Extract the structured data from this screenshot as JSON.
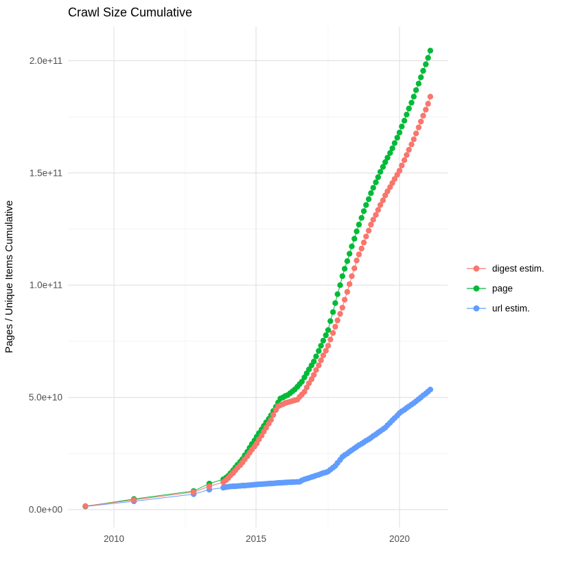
{
  "title": "Crawl Size Cumulative",
  "y_axis": {
    "label": "Pages / Unique Items Cumulative",
    "ticks": [
      "0.0e+00",
      "5.0e+10",
      "1.0e+11",
      "1.5e+11",
      "2.0e+11"
    ],
    "tick_values_e9": [
      0,
      50,
      100,
      150,
      200
    ],
    "minor_tick_values_e9": [
      25,
      75,
      125,
      175
    ]
  },
  "x_axis": {
    "ticks": [
      "2010",
      "2015",
      "2020"
    ],
    "tick_values": [
      2010,
      2015,
      2020
    ],
    "minor_tick_values": [
      2012.5,
      2017.5
    ]
  },
  "legend": {
    "items": [
      {
        "label": "digest estim.",
        "color": "#F8766D"
      },
      {
        "label": "page",
        "color": "#00BA38"
      },
      {
        "label": "url estim.",
        "color": "#619CFF"
      }
    ]
  },
  "colors": {
    "digest": "#F8766D",
    "page": "#00BA38",
    "url": "#619CFF",
    "grid_major": "#e2e2e2",
    "grid_minor": "#efefef",
    "tick_text": "#4d4d4d",
    "background": "#ffffff"
  },
  "chart_data": {
    "type": "scatter",
    "title": "Crawl Size Cumulative",
    "xlabel": "",
    "ylabel": "Pages / Unique Items Cumulative",
    "x_unit": "year (decimal)",
    "y_unit": "count, in billions (1e9)",
    "xlim": [
      2008.4,
      2021.7
    ],
    "ylim_e9": [
      -8,
      215
    ],
    "grid": true,
    "legend_position": "right",
    "draw_order": [
      "url estim.",
      "page",
      "digest estim."
    ],
    "series": [
      {
        "name": "digest estim.",
        "color": "#F8766D",
        "points": [
          [
            2009.0,
            1.6
          ],
          [
            2010.7,
            4.3
          ],
          [
            2012.79,
            7.8
          ],
          [
            2013.34,
            10.4
          ],
          [
            2013.83,
            12.2
          ],
          [
            2013.92,
            13.1
          ],
          [
            2014.0,
            14.0
          ],
          [
            2014.08,
            15.2
          ],
          [
            2014.17,
            16.3
          ],
          [
            2014.25,
            17.5
          ],
          [
            2014.33,
            18.7
          ],
          [
            2014.42,
            19.8
          ],
          [
            2014.5,
            21.0
          ],
          [
            2014.58,
            22.4
          ],
          [
            2014.67,
            23.8
          ],
          [
            2014.75,
            25.3
          ],
          [
            2014.83,
            26.7
          ],
          [
            2014.92,
            28.1
          ],
          [
            2015.0,
            29.5
          ],
          [
            2015.08,
            31.3
          ],
          [
            2015.17,
            33.0
          ],
          [
            2015.25,
            34.8
          ],
          [
            2015.33,
            36.5
          ],
          [
            2015.42,
            38.3
          ],
          [
            2015.5,
            40.0
          ],
          [
            2015.58,
            42.2
          ],
          [
            2015.67,
            44.4
          ],
          [
            2015.75,
            46.0
          ],
          [
            2015.83,
            46.5
          ],
          [
            2015.92,
            47.0
          ],
          [
            2016.0,
            47.5
          ],
          [
            2016.08,
            47.8
          ],
          [
            2016.17,
            48.1
          ],
          [
            2016.25,
            48.4
          ],
          [
            2016.33,
            48.7
          ],
          [
            2016.42,
            49.0
          ],
          [
            2016.5,
            50.2
          ],
          [
            2016.58,
            51.3
          ],
          [
            2016.67,
            52.5
          ],
          [
            2016.75,
            54.4
          ],
          [
            2016.83,
            56.3
          ],
          [
            2016.92,
            58.1
          ],
          [
            2017.0,
            60.0
          ],
          [
            2017.08,
            62.2
          ],
          [
            2017.17,
            64.3
          ],
          [
            2017.25,
            66.5
          ],
          [
            2017.33,
            68.7
          ],
          [
            2017.42,
            70.8
          ],
          [
            2017.5,
            73.0
          ],
          [
            2017.58,
            75.8
          ],
          [
            2017.67,
            78.7
          ],
          [
            2017.75,
            81.5
          ],
          [
            2017.83,
            84.3
          ],
          [
            2017.92,
            87.2
          ],
          [
            2018.0,
            90.0
          ],
          [
            2018.08,
            93.5
          ],
          [
            2018.17,
            97.0
          ],
          [
            2018.25,
            100.5
          ],
          [
            2018.33,
            104.0
          ],
          [
            2018.42,
            107.5
          ],
          [
            2018.5,
            111.0
          ],
          [
            2018.58,
            113.7
          ],
          [
            2018.67,
            116.3
          ],
          [
            2018.75,
            119.0
          ],
          [
            2018.83,
            121.7
          ],
          [
            2018.92,
            124.3
          ],
          [
            2019.0,
            127.0
          ],
          [
            2019.08,
            129.2
          ],
          [
            2019.17,
            131.3
          ],
          [
            2019.25,
            133.5
          ],
          [
            2019.33,
            135.7
          ],
          [
            2019.42,
            137.8
          ],
          [
            2019.5,
            140.0
          ],
          [
            2019.58,
            141.8
          ],
          [
            2019.67,
            143.7
          ],
          [
            2019.75,
            145.5
          ],
          [
            2019.83,
            147.3
          ],
          [
            2019.92,
            149.2
          ],
          [
            2020.0,
            151.0
          ],
          [
            2020.08,
            153.3
          ],
          [
            2020.17,
            155.7
          ],
          [
            2020.25,
            158.0
          ],
          [
            2020.33,
            160.3
          ],
          [
            2020.42,
            162.7
          ],
          [
            2020.5,
            165.0
          ],
          [
            2020.58,
            167.6
          ],
          [
            2020.67,
            170.3
          ],
          [
            2020.75,
            172.9
          ],
          [
            2020.83,
            175.5
          ],
          [
            2020.92,
            178.2
          ],
          [
            2021.0,
            180.8
          ],
          [
            2021.08,
            184.0
          ]
        ]
      },
      {
        "name": "page",
        "color": "#00BA38",
        "points": [
          [
            2009.0,
            1.5
          ],
          [
            2010.7,
            4.7
          ],
          [
            2012.79,
            8.3
          ],
          [
            2013.34,
            11.6
          ],
          [
            2013.83,
            13.5
          ],
          [
            2013.92,
            14.2
          ],
          [
            2014.0,
            15.0
          ],
          [
            2014.08,
            16.2
          ],
          [
            2014.17,
            17.5
          ],
          [
            2014.25,
            18.8
          ],
          [
            2014.33,
            20.0
          ],
          [
            2014.42,
            21.3
          ],
          [
            2014.5,
            22.5
          ],
          [
            2014.58,
            24.2
          ],
          [
            2014.67,
            25.8
          ],
          [
            2014.75,
            27.5
          ],
          [
            2014.83,
            29.2
          ],
          [
            2014.92,
            30.8
          ],
          [
            2015.0,
            32.5
          ],
          [
            2015.08,
            34.1
          ],
          [
            2015.17,
            35.7
          ],
          [
            2015.25,
            37.3
          ],
          [
            2015.33,
            38.9
          ],
          [
            2015.42,
            40.4
          ],
          [
            2015.5,
            42.0
          ],
          [
            2015.58,
            43.9
          ],
          [
            2015.67,
            45.8
          ],
          [
            2015.75,
            47.7
          ],
          [
            2015.83,
            49.5
          ],
          [
            2015.92,
            50.0
          ],
          [
            2016.0,
            50.6
          ],
          [
            2016.08,
            51.0
          ],
          [
            2016.17,
            51.9
          ],
          [
            2016.25,
            52.7
          ],
          [
            2016.33,
            53.5
          ],
          [
            2016.42,
            54.7
          ],
          [
            2016.5,
            55.9
          ],
          [
            2016.58,
            57.0
          ],
          [
            2016.67,
            58.9
          ],
          [
            2016.75,
            60.7
          ],
          [
            2016.83,
            62.5
          ],
          [
            2016.92,
            64.3
          ],
          [
            2017.0,
            66.0
          ],
          [
            2017.08,
            68.3
          ],
          [
            2017.17,
            70.7
          ],
          [
            2017.25,
            73.0
          ],
          [
            2017.33,
            75.3
          ],
          [
            2017.42,
            77.7
          ],
          [
            2017.5,
            80.0
          ],
          [
            2017.58,
            84.0
          ],
          [
            2017.67,
            88.0
          ],
          [
            2017.75,
            92.0
          ],
          [
            2017.83,
            96.0
          ],
          [
            2017.92,
            100.0
          ],
          [
            2018.0,
            104.0
          ],
          [
            2018.08,
            107.3
          ],
          [
            2018.17,
            110.7
          ],
          [
            2018.25,
            114.0
          ],
          [
            2018.33,
            117.3
          ],
          [
            2018.42,
            120.7
          ],
          [
            2018.5,
            124.0
          ],
          [
            2018.58,
            127.0
          ],
          [
            2018.67,
            130.0
          ],
          [
            2018.75,
            133.0
          ],
          [
            2018.83,
            135.7
          ],
          [
            2018.92,
            138.3
          ],
          [
            2019.0,
            141.0
          ],
          [
            2019.08,
            143.4
          ],
          [
            2019.17,
            145.8
          ],
          [
            2019.25,
            148.1
          ],
          [
            2019.33,
            150.5
          ],
          [
            2019.42,
            152.7
          ],
          [
            2019.5,
            154.8
          ],
          [
            2019.58,
            156.8
          ],
          [
            2019.67,
            158.9
          ],
          [
            2019.75,
            161.0
          ],
          [
            2019.83,
            163.3
          ],
          [
            2019.92,
            165.7
          ],
          [
            2020.0,
            168.0
          ],
          [
            2020.08,
            170.7
          ],
          [
            2020.17,
            173.3
          ],
          [
            2020.25,
            176.0
          ],
          [
            2020.33,
            178.7
          ],
          [
            2020.42,
            181.3
          ],
          [
            2020.5,
            184.0
          ],
          [
            2020.58,
            186.9
          ],
          [
            2020.67,
            189.8
          ],
          [
            2020.75,
            192.6
          ],
          [
            2020.83,
            195.5
          ],
          [
            2020.92,
            198.4
          ],
          [
            2021.0,
            201.3
          ],
          [
            2021.08,
            204.5
          ]
        ]
      },
      {
        "name": "url estim.",
        "color": "#619CFF",
        "points": [
          [
            2009.0,
            1.4
          ],
          [
            2010.7,
            3.7
          ],
          [
            2012.79,
            6.9
          ],
          [
            2013.34,
            8.9
          ],
          [
            2013.83,
            9.8
          ],
          [
            2013.92,
            10.0
          ],
          [
            2014.0,
            10.2
          ],
          [
            2014.08,
            10.3
          ],
          [
            2014.17,
            10.4
          ],
          [
            2014.25,
            10.4
          ],
          [
            2014.33,
            10.5
          ],
          [
            2014.42,
            10.6
          ],
          [
            2014.5,
            10.7
          ],
          [
            2014.58,
            10.7
          ],
          [
            2014.67,
            10.8
          ],
          [
            2014.75,
            10.9
          ],
          [
            2014.83,
            11.0
          ],
          [
            2014.92,
            11.1
          ],
          [
            2015.0,
            11.2
          ],
          [
            2015.08,
            11.3
          ],
          [
            2015.17,
            11.35
          ],
          [
            2015.25,
            11.4
          ],
          [
            2015.33,
            11.5
          ],
          [
            2015.42,
            11.6
          ],
          [
            2015.5,
            11.65
          ],
          [
            2015.58,
            11.7
          ],
          [
            2015.67,
            11.8
          ],
          [
            2015.75,
            11.9
          ],
          [
            2015.83,
            11.95
          ],
          [
            2015.92,
            12.0
          ],
          [
            2016.0,
            12.1
          ],
          [
            2016.08,
            12.15
          ],
          [
            2016.17,
            12.2
          ],
          [
            2016.25,
            12.25
          ],
          [
            2016.33,
            12.3
          ],
          [
            2016.42,
            12.35
          ],
          [
            2016.5,
            12.4
          ],
          [
            2016.58,
            13.0
          ],
          [
            2016.67,
            13.5
          ],
          [
            2016.75,
            13.8
          ],
          [
            2016.83,
            14.1
          ],
          [
            2016.92,
            14.5
          ],
          [
            2017.0,
            14.8
          ],
          [
            2017.08,
            15.2
          ],
          [
            2017.17,
            15.5
          ],
          [
            2017.25,
            15.9
          ],
          [
            2017.33,
            16.3
          ],
          [
            2017.42,
            16.6
          ],
          [
            2017.5,
            17.0
          ],
          [
            2017.58,
            17.8
          ],
          [
            2017.67,
            18.7
          ],
          [
            2017.75,
            19.5
          ],
          [
            2017.83,
            20.8
          ],
          [
            2017.92,
            22.2
          ],
          [
            2018.0,
            23.5
          ],
          [
            2018.08,
            24.3
          ],
          [
            2018.17,
            25.0
          ],
          [
            2018.25,
            25.8
          ],
          [
            2018.33,
            26.5
          ],
          [
            2018.42,
            27.3
          ],
          [
            2018.5,
            28.0
          ],
          [
            2018.58,
            28.7
          ],
          [
            2018.67,
            29.3
          ],
          [
            2018.75,
            30.0
          ],
          [
            2018.83,
            30.7
          ],
          [
            2018.92,
            31.3
          ],
          [
            2019.0,
            32.0
          ],
          [
            2019.08,
            32.8
          ],
          [
            2019.17,
            33.5
          ],
          [
            2019.25,
            34.3
          ],
          [
            2019.33,
            35.0
          ],
          [
            2019.42,
            35.8
          ],
          [
            2019.5,
            36.5
          ],
          [
            2019.58,
            37.6
          ],
          [
            2019.67,
            38.7
          ],
          [
            2019.75,
            39.8
          ],
          [
            2019.83,
            40.8
          ],
          [
            2019.92,
            41.9
          ],
          [
            2020.0,
            43.0
          ],
          [
            2020.08,
            43.8
          ],
          [
            2020.17,
            44.5
          ],
          [
            2020.25,
            45.3
          ],
          [
            2020.33,
            46.0
          ],
          [
            2020.42,
            46.8
          ],
          [
            2020.5,
            47.5
          ],
          [
            2020.58,
            48.3
          ],
          [
            2020.67,
            49.2
          ],
          [
            2020.75,
            50.0
          ],
          [
            2020.83,
            50.9
          ],
          [
            2020.92,
            51.7
          ],
          [
            2021.0,
            52.6
          ],
          [
            2021.08,
            53.5
          ]
        ]
      }
    ]
  }
}
